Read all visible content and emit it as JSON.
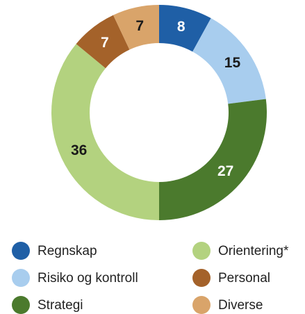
{
  "chart_data": {
    "type": "pie",
    "donut": true,
    "categories": [
      "Regnskap",
      "Risiko og kontroll",
      "Strategi",
      "Orientering*",
      "Personal",
      "Diverse"
    ],
    "values": [
      8,
      15,
      27,
      36,
      7,
      7
    ],
    "colors": [
      "#1f5fa6",
      "#a8cdee",
      "#4b7a2d",
      "#b3d27f",
      "#a4622a",
      "#d9a46a"
    ]
  }
}
